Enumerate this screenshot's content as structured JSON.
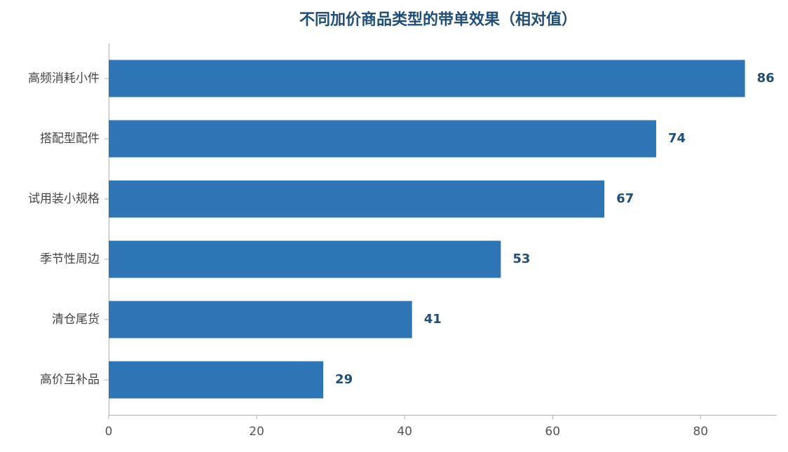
{
  "chart_data": {
    "type": "barh",
    "title": "不同加价商品类型的带单效果（相对值）",
    "categories": [
      "高频消耗小件",
      "搭配型配件",
      "试用装小规格",
      "季节性周边",
      "清仓尾货",
      "高价互补品"
    ],
    "values": [
      86,
      74,
      67,
      53,
      41,
      29
    ],
    "color": "#2e75b6",
    "xlim": [
      0,
      90.3
    ],
    "xticks": [
      0,
      20,
      40,
      60,
      80
    ],
    "grid": false
  }
}
